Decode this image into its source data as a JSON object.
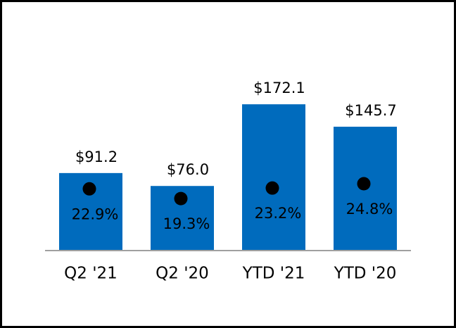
{
  "chart_data": {
    "type": "bar",
    "categories": [
      "Q2 '21",
      "Q2 '20",
      "YTD '21",
      "YTD '20"
    ],
    "series": [
      {
        "type": "bar",
        "color": "#006bbd",
        "values": [
          91.2,
          76.0,
          172.1,
          145.7
        ],
        "value_labels": [
          "$91.2",
          "$76.0",
          "$172.1",
          "$145.7"
        ]
      },
      {
        "type": "scatter",
        "axis": "y2",
        "color": "#000000",
        "values": [
          22.9,
          19.3,
          23.2,
          24.8
        ],
        "value_labels": [
          "22.9%",
          "19.3%",
          "23.2%",
          "24.8%"
        ]
      }
    ],
    "ylim": [
      0,
      260
    ],
    "y2lim": [
      0,
      82
    ],
    "grid": false
  }
}
